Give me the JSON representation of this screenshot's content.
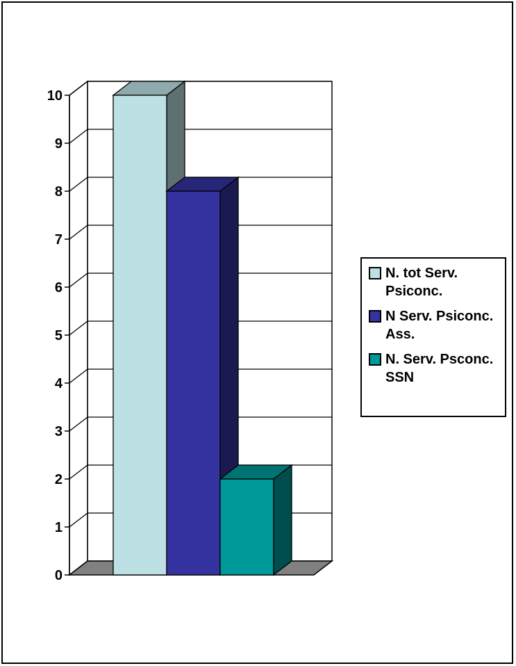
{
  "chart_data": {
    "type": "bar",
    "style": "3d",
    "title": "",
    "xlabel": "",
    "ylabel": "",
    "ylim": [
      0,
      10
    ],
    "yticks": [
      "0",
      "1",
      "2",
      "3",
      "4",
      "5",
      "6",
      "7",
      "8",
      "9",
      "10"
    ],
    "grid": true,
    "legend_position": "right",
    "series": [
      {
        "name": "N. tot Serv. Psiconc.",
        "value": 10,
        "color": "#bce0e4",
        "side_color": "#5e7072",
        "top_color": "#8eaaad"
      },
      {
        "name": "N Serv. Psiconc. Ass.",
        "value": 8,
        "color": "#3533a0",
        "side_color": "#1b1a50",
        "top_color": "#282678"
      },
      {
        "name": "N. Serv. Psconc. SSN",
        "value": 2,
        "color": "#009999",
        "side_color": "#004d4d",
        "top_color": "#007373"
      }
    ],
    "floor_color": "#808080",
    "wall_color": "#ffffff"
  }
}
